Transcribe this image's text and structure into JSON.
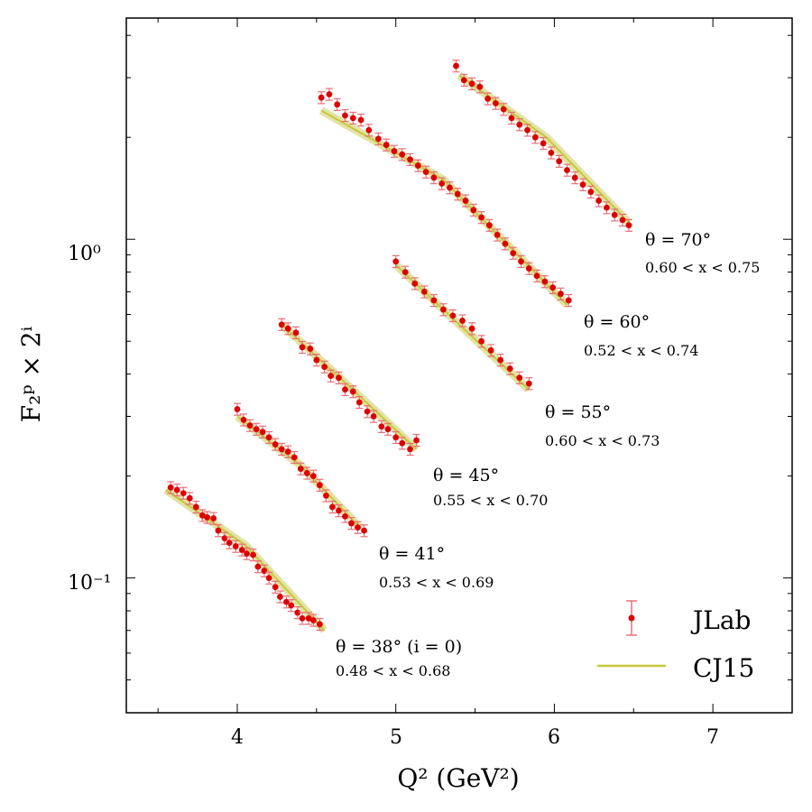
{
  "chart_data": {
    "type": "scatter",
    "title": "",
    "xlabel": "Q² (GeV²)",
    "ylabel": "F₂ᵖ × 2ⁱ",
    "xlim": [
      3.3,
      7.5
    ],
    "ylim": [
      0.04,
      4.5
    ],
    "yscale": "log",
    "x_ticks": [
      "4",
      "5",
      "6",
      "7"
    ],
    "y_ticks": [
      "10⁰",
      "10⁻¹"
    ],
    "grid": false,
    "legend": {
      "position": "bottom-right",
      "entries": [
        "JLab",
        "CJ15"
      ]
    },
    "colors": {
      "jlab": "#dd0000",
      "jlab_err": "#e8707a",
      "cj15": "#c8c83a",
      "cj15_band": "#d9d98a"
    },
    "series": [
      {
        "name": "JLab",
        "theta_label": "θ = 38° (i = 0)",
        "x_range_label": "0.48 < x < 0.68",
        "q2": [
          3.58,
          3.62,
          3.66,
          3.7,
          3.74,
          3.78,
          3.81,
          3.85,
          3.88,
          3.92,
          3.95,
          3.99,
          4.03,
          4.06,
          4.1,
          4.13,
          4.17,
          4.2,
          4.24,
          4.27,
          4.31,
          4.34,
          4.38,
          4.41,
          4.45,
          4.48,
          4.52
        ],
        "f2": [
          0.185,
          0.182,
          0.178,
          0.172,
          0.162,
          0.153,
          0.151,
          0.15,
          0.138,
          0.131,
          0.127,
          0.124,
          0.121,
          0.118,
          0.117,
          0.108,
          0.105,
          0.1,
          0.094,
          0.088,
          0.085,
          0.083,
          0.079,
          0.076,
          0.076,
          0.075,
          0.073
        ],
        "cj15_line": [
          [
            3.55,
            0.182
          ],
          [
            4.05,
            0.125
          ],
          [
            4.55,
            0.07
          ]
        ]
      },
      {
        "name": "JLab",
        "theta_label": "θ = 41°",
        "x_range_label": "0.53 < x < 0.69",
        "q2": [
          4.0,
          4.04,
          4.08,
          4.12,
          4.16,
          4.2,
          4.24,
          4.28,
          4.32,
          4.36,
          4.4,
          4.44,
          4.48,
          4.52,
          4.56,
          4.6,
          4.64,
          4.68,
          4.72,
          4.76,
          4.8
        ],
        "f2": [
          0.315,
          0.293,
          0.282,
          0.275,
          0.27,
          0.26,
          0.248,
          0.24,
          0.236,
          0.227,
          0.21,
          0.204,
          0.2,
          0.188,
          0.175,
          0.162,
          0.158,
          0.152,
          0.145,
          0.141,
          0.138
        ],
        "cj15_line": [
          [
            4.0,
            0.3
          ],
          [
            4.4,
            0.215
          ],
          [
            4.78,
            0.14
          ]
        ]
      },
      {
        "name": "JLab",
        "theta_label": "θ = 45°",
        "x_range_label": "0.55 < x < 0.70",
        "q2": [
          4.28,
          4.32,
          4.37,
          4.41,
          4.46,
          4.5,
          4.55,
          4.59,
          4.64,
          4.68,
          4.73,
          4.77,
          4.82,
          4.86,
          4.91,
          4.95,
          5.0,
          5.04,
          5.09,
          5.13
        ],
        "f2": [
          0.56,
          0.545,
          0.53,
          0.48,
          0.475,
          0.44,
          0.42,
          0.395,
          0.39,
          0.36,
          0.355,
          0.33,
          0.31,
          0.3,
          0.28,
          0.275,
          0.26,
          0.25,
          0.24,
          0.255
        ],
        "cj15_line": [
          [
            4.28,
            0.56
          ],
          [
            4.7,
            0.37
          ],
          [
            5.13,
            0.24
          ]
        ]
      },
      {
        "name": "JLab",
        "theta_label": "θ = 55°",
        "x_range_label": "0.60 < x < 0.73",
        "q2": [
          5.0,
          5.06,
          5.12,
          5.18,
          5.24,
          5.3,
          5.36,
          5.42,
          5.48,
          5.54,
          5.6,
          5.66,
          5.72,
          5.78,
          5.84
        ],
        "f2": [
          0.86,
          0.8,
          0.74,
          0.7,
          0.66,
          0.62,
          0.595,
          0.575,
          0.545,
          0.5,
          0.47,
          0.44,
          0.415,
          0.39,
          0.375
        ],
        "cj15_line": [
          [
            5.0,
            0.84
          ],
          [
            5.4,
            0.56
          ],
          [
            5.84,
            0.36
          ]
        ]
      },
      {
        "name": "JLab",
        "theta_label": "θ = 60°",
        "x_range_label": "0.52 < x < 0.74",
        "q2": [
          4.53,
          4.58,
          4.63,
          4.68,
          4.73,
          4.78,
          4.83,
          4.89,
          4.94,
          4.99,
          5.04,
          5.09,
          5.14,
          5.19,
          5.24,
          5.29,
          5.34,
          5.39,
          5.44,
          5.49,
          5.54,
          5.59,
          5.64,
          5.69,
          5.74,
          5.79,
          5.84,
          5.89,
          5.94,
          5.99,
          6.04,
          6.09
        ],
        "f2": [
          2.62,
          2.68,
          2.5,
          2.32,
          2.28,
          2.25,
          2.1,
          1.98,
          1.9,
          1.82,
          1.78,
          1.72,
          1.65,
          1.58,
          1.52,
          1.46,
          1.42,
          1.36,
          1.3,
          1.22,
          1.16,
          1.1,
          1.03,
          0.97,
          0.91,
          0.86,
          0.82,
          0.78,
          0.75,
          0.72,
          0.69,
          0.66
        ],
        "cj15_line": [
          [
            4.53,
            2.4
          ],
          [
            5.3,
            1.5
          ],
          [
            6.08,
            0.64
          ]
        ]
      },
      {
        "name": "JLab",
        "theta_label": "θ = 70°",
        "x_range_label": "0.60 < x < 0.75",
        "q2": [
          5.38,
          5.43,
          5.48,
          5.53,
          5.58,
          5.63,
          5.68,
          5.73,
          5.78,
          5.83,
          5.88,
          5.93,
          5.98,
          6.03,
          6.08,
          6.13,
          6.18,
          6.23,
          6.28,
          6.33,
          6.38,
          6.43,
          6.47
        ],
        "f2": [
          3.25,
          2.95,
          2.88,
          2.82,
          2.6,
          2.52,
          2.42,
          2.28,
          2.18,
          2.1,
          2.0,
          1.92,
          1.8,
          1.7,
          1.6,
          1.52,
          1.45,
          1.38,
          1.3,
          1.24,
          1.18,
          1.14,
          1.1
        ],
        "cj15_line": [
          [
            5.4,
            3.05
          ],
          [
            5.95,
            2.0
          ],
          [
            6.47,
            1.12
          ]
        ]
      }
    ]
  }
}
